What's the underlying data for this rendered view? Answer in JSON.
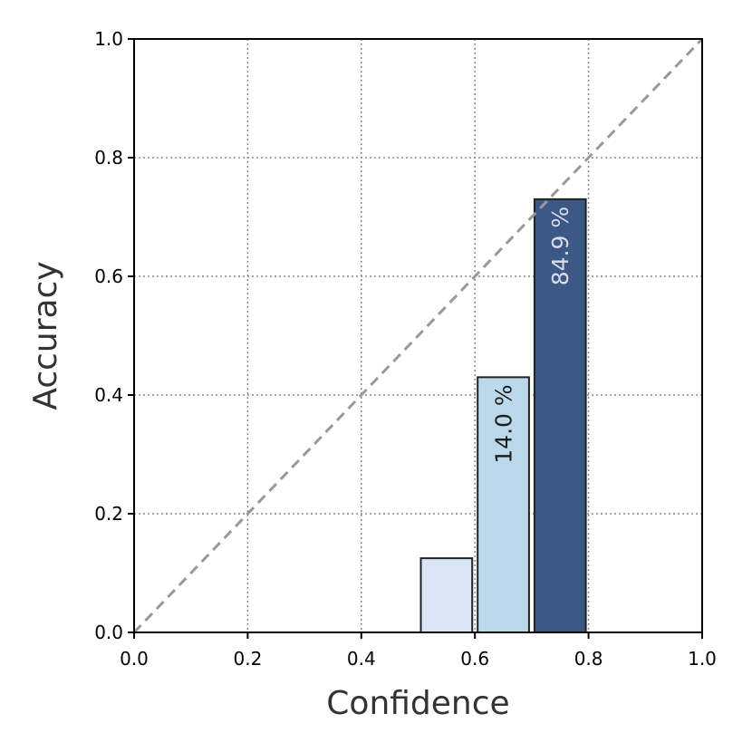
{
  "chart_data": {
    "type": "bar",
    "xlabel": "Confidence",
    "ylabel": "Accuracy",
    "xlim": [
      0.0,
      1.0
    ],
    "ylim": [
      0.0,
      1.0
    ],
    "x_ticks": [
      "0.0",
      "0.2",
      "0.4",
      "0.6",
      "0.8",
      "1.0"
    ],
    "y_ticks": [
      "0.0",
      "0.2",
      "0.4",
      "0.6",
      "0.8",
      "1.0"
    ],
    "grid": true,
    "diagonal_reference": true,
    "bars": [
      {
        "bin_start": 0.5,
        "bin_end": 0.6,
        "accuracy": 0.125,
        "label": "",
        "color": "#dbe6f5"
      },
      {
        "bin_start": 0.6,
        "bin_end": 0.7,
        "accuracy": 0.43,
        "label": "14.0 %",
        "color": "#bcd9eb",
        "label_color": "#1f1f1f"
      },
      {
        "bin_start": 0.7,
        "bin_end": 0.8,
        "accuracy": 0.73,
        "label": "84.9 %",
        "color": "#3b5887",
        "label_color": "#d9dde5"
      }
    ],
    "colors": {
      "diagonal": "#999999",
      "grid": "#888888",
      "bar_edge": "#222222"
    }
  }
}
